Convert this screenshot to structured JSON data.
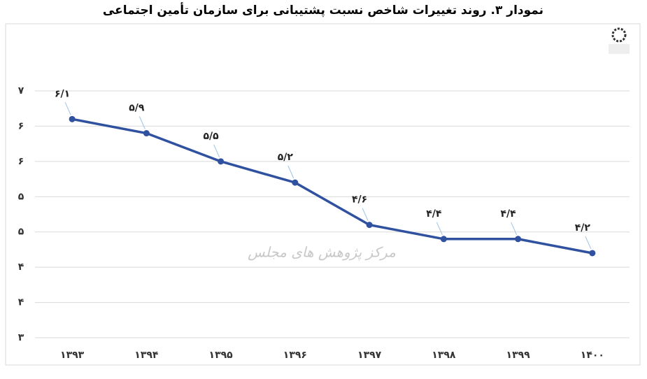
{
  "chart_data": {
    "type": "line",
    "title": "نمودار ۳. روند تغییرات شاخص نسبت پشتیبانی برای سازمان تأمین اجتماعی",
    "watermark": "مرکز پژوهش های مجلس",
    "categories": [
      "۱۳۹۳",
      "۱۳۹۴",
      "۱۳۹۵",
      "۱۳۹۶",
      "۱۳۹۷",
      "۱۳۹۸",
      "۱۳۹۹",
      "۱۴۰۰"
    ],
    "values": [
      6.1,
      5.9,
      5.5,
      5.2,
      4.6,
      4.4,
      4.4,
      4.2
    ],
    "value_labels": [
      "۶/۱",
      "۵/۹",
      "۵/۵",
      "۵/۲",
      "۴/۶",
      "۴/۴",
      "۴/۴",
      "۴/۲"
    ],
    "color": "#2f519f",
    "ylim": [
      3,
      6.5
    ],
    "yticks": [
      {
        "value": 6.5,
        "label": "۷"
      },
      {
        "value": 6,
        "label": "۶"
      },
      {
        "value": 5.5,
        "label": "۶"
      },
      {
        "value": 5,
        "label": "۵"
      },
      {
        "value": 4.5,
        "label": "۵"
      },
      {
        "value": 4,
        "label": "۴"
      },
      {
        "value": 3.5,
        "label": "۴"
      },
      {
        "value": 3,
        "label": "۳"
      }
    ],
    "grid": true
  }
}
